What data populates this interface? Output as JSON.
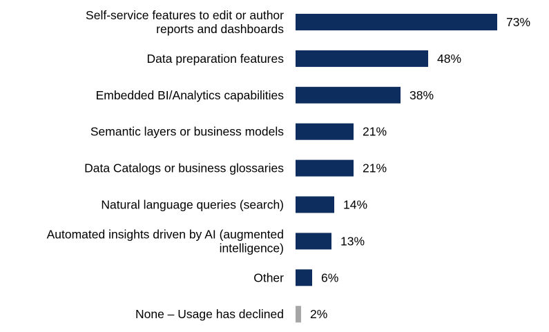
{
  "chart_data": {
    "type": "bar",
    "orientation": "horizontal",
    "categories": [
      [
        "Self-service features to edit or author",
        "reports and dashboards"
      ],
      [
        "Data preparation features"
      ],
      [
        "Embedded BI/Analytics capabilities"
      ],
      [
        "Semantic layers or business models"
      ],
      [
        "Data Catalogs or business glossaries"
      ],
      [
        "Natural language queries (search)"
      ],
      [
        "Automated insights driven by AI (augmented",
        "intelligence)"
      ],
      [
        "Other"
      ],
      [
        "None – Usage has declined"
      ]
    ],
    "values": [
      73,
      48,
      38,
      21,
      21,
      14,
      13,
      6,
      2
    ],
    "value_labels": [
      "73%",
      "48%",
      "38%",
      "21%",
      "21%",
      "14%",
      "13%",
      "6%",
      "2%"
    ],
    "bar_colors": [
      "#0d2d5e",
      "#0d2d5e",
      "#0d2d5e",
      "#0d2d5e",
      "#0d2d5e",
      "#0d2d5e",
      "#0d2d5e",
      "#0d2d5e",
      "#a6a6a6"
    ],
    "xlim": [
      0,
      100
    ],
    "grid": false,
    "legend": "none"
  }
}
